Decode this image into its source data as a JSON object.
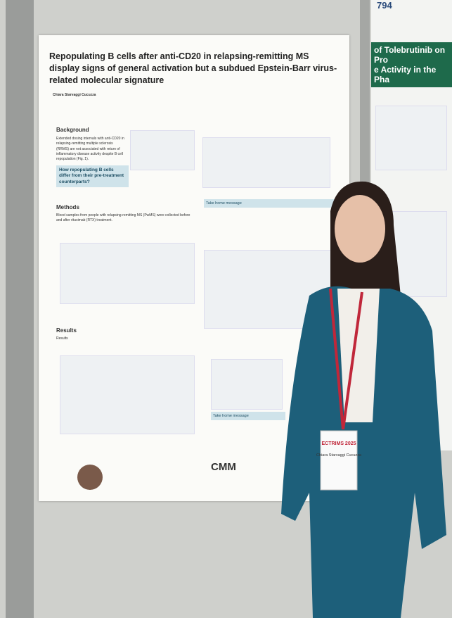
{
  "poster": {
    "title": "Repopulating B cells after anti-CD20 in relapsing-remitting MS display signs of general activation but a subdued Epstein-Barr virus-related molecular signature",
    "authors": "Chiara Starvaggi Cucuzza",
    "background": {
      "heading": "Background",
      "text": "Extended dosing intervals with anti-CD20 in relapsing-remitting multiple sclerosis (RRMS) are not associated with return of inflammatory disease activity despite B cell repopulation (Fig. 1)."
    },
    "question": "How repopulating B cells differ from their pre-treatment counterparts?",
    "methods": {
      "heading": "Methods",
      "text": "Blood samples from people with relapsing-remitting MS (PwMS) were collected before and after rituximab (RTX) treatment."
    },
    "results": {
      "heading": "Results",
      "text": "Results"
    },
    "take_home": "Take home message",
    "logo": "CMM"
  },
  "right_poster": {
    "number": "794",
    "title_lines": [
      "of Tolebrutinib on Pro",
      "e Activity in the Pha"
    ]
  },
  "badge": {
    "event": "ECTRIMS 2025",
    "name": "Chiara Starvaggi Cucuzza"
  }
}
